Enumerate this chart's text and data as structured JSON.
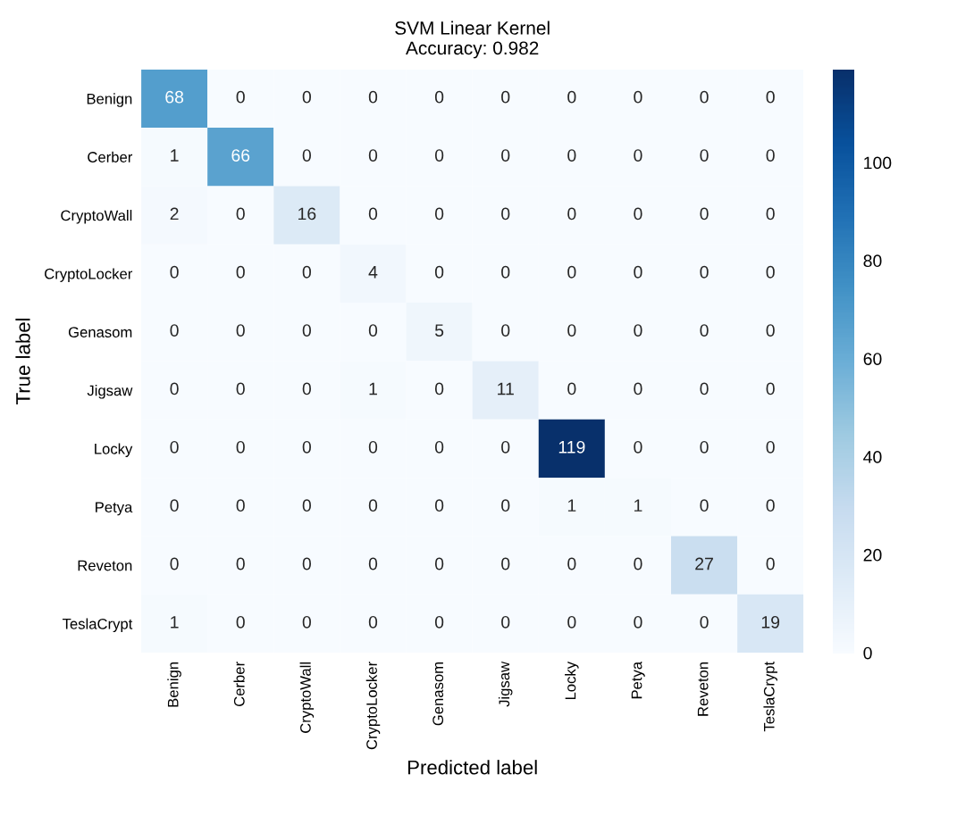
{
  "chart_data": {
    "type": "heatmap",
    "title": "SVM Linear Kernel\nAccuracy: 0.982",
    "xlabel": "Predicted label",
    "ylabel": "True label",
    "categories": [
      "Benign",
      "Cerber",
      "CryptoWall",
      "CryptoLocker",
      "Genasom",
      "Jigsaw",
      "Locky",
      "Petya",
      "Reveton",
      "TeslaCrypt"
    ],
    "y_categories": [
      "Benign",
      "Cerber",
      "CryptoWall",
      "CryptoLocker",
      "Genasom",
      "Jigsaw",
      "Locky",
      "Petya",
      "Reveton",
      "TeslaCrypt"
    ],
    "cells": [
      [
        68,
        0,
        0,
        0,
        0,
        0,
        0,
        0,
        0,
        0
      ],
      [
        1,
        66,
        0,
        0,
        0,
        0,
        0,
        0,
        0,
        0
      ],
      [
        2,
        0,
        16,
        0,
        0,
        0,
        0,
        0,
        0,
        0
      ],
      [
        0,
        0,
        0,
        4,
        0,
        0,
        0,
        0,
        0,
        0
      ],
      [
        0,
        0,
        0,
        0,
        5,
        0,
        0,
        0,
        0,
        0
      ],
      [
        0,
        0,
        0,
        1,
        0,
        11,
        0,
        0,
        0,
        0
      ],
      [
        0,
        0,
        0,
        0,
        0,
        0,
        119,
        0,
        0,
        0
      ],
      [
        0,
        0,
        0,
        0,
        0,
        0,
        1,
        1,
        0,
        0
      ],
      [
        0,
        0,
        0,
        0,
        0,
        0,
        0,
        0,
        27,
        0
      ],
      [
        1,
        0,
        0,
        0,
        0,
        0,
        0,
        0,
        0,
        19
      ]
    ],
    "clim": [
      0,
      119
    ],
    "cticks": [
      0,
      20,
      40,
      60,
      80,
      100
    ],
    "data_labels": true,
    "grid": false
  }
}
